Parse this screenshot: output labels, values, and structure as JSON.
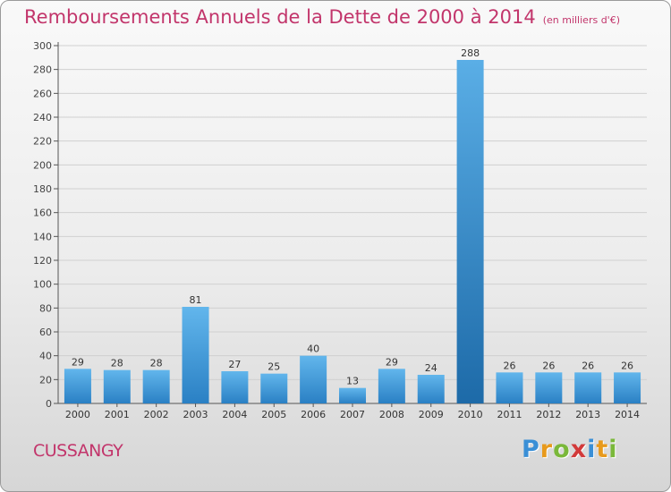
{
  "title": "Remboursements Annuels de la Dette de 2000 à 2014",
  "subtitle": "(en milliers d'€)",
  "commune": "CUSSANGY",
  "logo": {
    "letters": [
      "P",
      "r",
      "o",
      "x",
      "i",
      "t",
      "i"
    ],
    "colors": [
      "#3a8fd6",
      "#e89a1c",
      "#7ab83a",
      "#d23a3a",
      "#3a8fd6",
      "#e89a1c",
      "#7ab83a"
    ]
  },
  "colors": {
    "bar": "#4aa3df",
    "bar_highlight": "#2678b8",
    "title": "#c2356b",
    "axis": "#555555",
    "grid": "#d0d0d0"
  },
  "chart_data": {
    "type": "bar",
    "title": "Remboursements Annuels de la Dette de 2000 à 2014",
    "subtitle": "(en milliers d'€)",
    "categories": [
      "2000",
      "2001",
      "2002",
      "2003",
      "2004",
      "2005",
      "2006",
      "2007",
      "2008",
      "2009",
      "2010",
      "2011",
      "2012",
      "2013",
      "2014"
    ],
    "values": [
      29,
      28,
      28,
      81,
      27,
      25,
      40,
      13,
      29,
      24,
      288,
      26,
      26,
      26,
      26
    ],
    "ylim": [
      0,
      300
    ],
    "yticks": [
      0,
      20,
      40,
      60,
      80,
      100,
      120,
      140,
      160,
      180,
      200,
      220,
      240,
      260,
      280,
      300
    ],
    "xlabel": "",
    "ylabel": "",
    "grid": true,
    "data_labels": true
  }
}
